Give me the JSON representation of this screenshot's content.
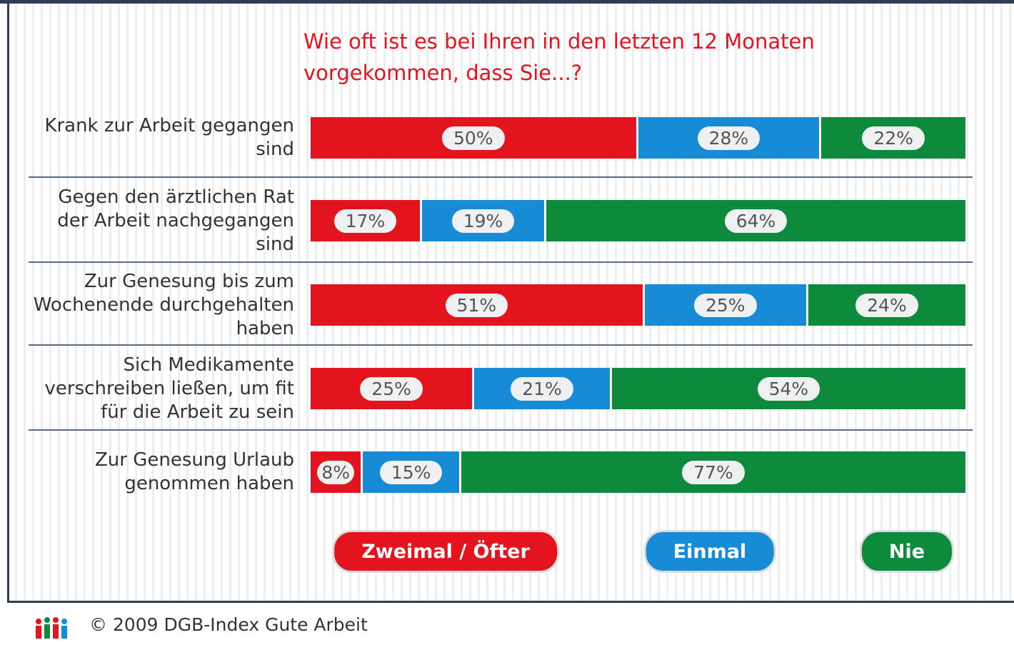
{
  "chart_data": {
    "type": "stacked_bar_horizontal",
    "title": "Wie oft ist es bei Ihren in den letzten 12 Monaten vorgekommen, dass Sie...?",
    "categories": [
      "Krank zur Arbeit gegangen sind",
      "Gegen den ärztlichen Rat der Arbeit nachgegangen sind",
      "Zur Genesung bis zum Wochenende durchgehalten haben",
      "Sich Medikamente verschreiben ließen, um fit für die Arbeit zu sein",
      "Zur Genesung Urlaub genommen haben"
    ],
    "xlim": [
      0,
      100
    ],
    "series": [
      {
        "name": "Zweimal / Öfter",
        "color": "#e3141e",
        "values": [
          50,
          17,
          51,
          25,
          8
        ],
        "value_labels": [
          "50%",
          "17%",
          "51%",
          "25%",
          "8%"
        ]
      },
      {
        "name": "Einmal",
        "color": "#178bd6",
        "values": [
          28,
          19,
          25,
          21,
          15
        ],
        "value_labels": [
          "28%",
          "19%",
          "25%",
          "21%",
          "15%"
        ]
      },
      {
        "name": "Nie",
        "color": "#0d8a3b",
        "values": [
          22,
          64,
          24,
          54,
          77
        ],
        "value_labels": [
          "22%",
          "64%",
          "24%",
          "54%",
          "77%"
        ]
      }
    ],
    "footer": "© 2009 DGB-Index Gute Arbeit"
  }
}
